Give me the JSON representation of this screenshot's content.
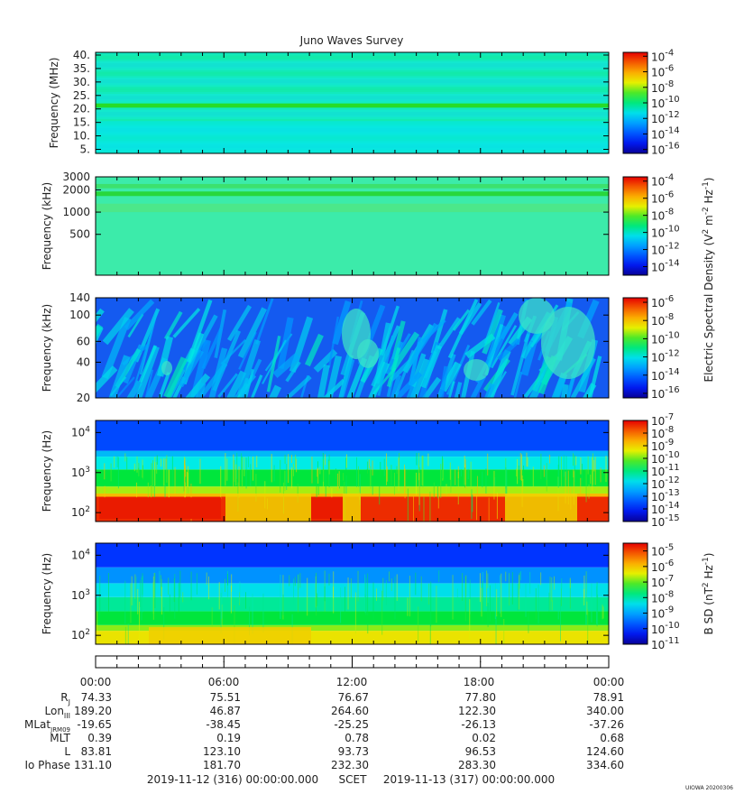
{
  "chart_data": {
    "type": "heatmap",
    "title": "Juno Waves Survey",
    "panels": [
      {
        "ylabel": "Frequency (MHz)",
        "y_scale": "linear",
        "ylim": [
          3.5,
          41
        ],
        "yticks": [
          {
            "v": 5,
            "t": "5."
          },
          {
            "v": 10,
            "t": "10."
          },
          {
            "v": 15,
            "t": "15."
          },
          {
            "v": 20,
            "t": "20."
          },
          {
            "v": 25,
            "t": "25."
          },
          {
            "v": 30,
            "t": "30."
          },
          {
            "v": 35,
            "t": "35."
          },
          {
            "v": 40,
            "t": "40."
          }
        ],
        "colorbar": {
          "min_exp": -16.5,
          "max_exp": -3.5,
          "ticks": [
            {
              "e": -4,
              "t": "-4"
            },
            {
              "e": -6,
              "t": "-6"
            },
            {
              "e": -8,
              "t": "-8"
            },
            {
              "e": -10,
              "t": "-10"
            },
            {
              "e": -12,
              "t": "-12"
            },
            {
              "e": -14,
              "t": "-14"
            },
            {
              "e": -16,
              "t": "-16"
            }
          ]
        },
        "pattern": "hfr_high"
      },
      {
        "ylabel": "Frequency (kHz)",
        "y_scale": "log",
        "ylim": [
          140,
          3000
        ],
        "yticks": [
          {
            "v": 500,
            "t": "500"
          },
          {
            "v": 1000,
            "t": "1000"
          },
          {
            "v": 2000,
            "t": "2000"
          },
          {
            "v": 3000,
            "t": "3000"
          }
        ],
        "colorbar": {
          "min_exp": -15,
          "max_exp": -3.5,
          "ticks": [
            {
              "e": -4,
              "t": "-4"
            },
            {
              "e": -6,
              "t": "-6"
            },
            {
              "e": -8,
              "t": "-8"
            },
            {
              "e": -10,
              "t": "-10"
            },
            {
              "e": -12,
              "t": "-12"
            },
            {
              "e": -14,
              "t": "-14"
            }
          ]
        },
        "pattern": "hfr_low"
      },
      {
        "ylabel": "Frequency (kHz)",
        "y_scale": "log",
        "ylim": [
          20,
          140
        ],
        "yticks": [
          {
            "v": 20,
            "t": "20"
          },
          {
            "v": 40,
            "t": "40"
          },
          {
            "v": 60,
            "t": "60"
          },
          {
            "v": 100,
            "t": "100"
          },
          {
            "v": 140,
            "t": "140"
          }
        ],
        "colorbar": {
          "min_exp": -16.5,
          "max_exp": -5.5,
          "ticks": [
            {
              "e": -6,
              "t": "-6"
            },
            {
              "e": -8,
              "t": "-8"
            },
            {
              "e": -10,
              "t": "-10"
            },
            {
              "e": -12,
              "t": "-12"
            },
            {
              "e": -14,
              "t": "-14"
            },
            {
              "e": -16,
              "t": "-16"
            }
          ]
        },
        "pattern": "lfr_streaks"
      },
      {
        "ylabel": "Frequency (Hz)",
        "y_scale": "log",
        "ylim": [
          60,
          20000
        ],
        "yticks": [
          {
            "v": 100,
            "t": "10",
            "sup": "2"
          },
          {
            "v": 1000,
            "t": "10",
            "sup": "3"
          },
          {
            "v": 10000,
            "t": "10",
            "sup": "4"
          }
        ],
        "colorbar": {
          "min_exp": -15,
          "max_exp": -7,
          "ticks": [
            {
              "e": -7,
              "t": "-7"
            },
            {
              "e": -8,
              "t": "-8"
            },
            {
              "e": -9,
              "t": "-9"
            },
            {
              "e": -10,
              "t": "-10"
            },
            {
              "e": -11,
              "t": "-11"
            },
            {
              "e": -12,
              "t": "-12"
            },
            {
              "e": -13,
              "t": "-13"
            },
            {
              "e": -14,
              "t": "-14"
            },
            {
              "e": -15,
              "t": "-15"
            }
          ]
        },
        "pattern": "lfr_e"
      },
      {
        "ylabel": "Frequency (Hz)",
        "y_scale": "log",
        "ylim": [
          60,
          20000
        ],
        "yticks": [
          {
            "v": 100,
            "t": "10",
            "sup": "2"
          },
          {
            "v": 1000,
            "t": "10",
            "sup": "3"
          },
          {
            "v": 10000,
            "t": "10",
            "sup": "4"
          }
        ],
        "colorbar": {
          "min_exp": -11,
          "max_exp": -4.5,
          "ticks": [
            {
              "e": -5,
              "t": "-5"
            },
            {
              "e": -6,
              "t": "-6"
            },
            {
              "e": -7,
              "t": "-7"
            },
            {
              "e": -8,
              "t": "-8"
            },
            {
              "e": -9,
              "t": "-9"
            },
            {
              "e": -10,
              "t": "-10"
            },
            {
              "e": -11,
              "t": "-11"
            }
          ]
        },
        "pattern": "lfr_b"
      }
    ],
    "colorbar_labels": {
      "electric": "Electric Spectral Density (V",
      "electric_sup1": "2",
      "electric_mid": " m",
      "electric_sup2": "-2",
      "electric_mid2": " Hz",
      "electric_sup3": "-1",
      "electric_end": ")",
      "magnetic": "B SD (nT",
      "magnetic_sup1": "2",
      "magnetic_mid": " Hz",
      "magnetic_sup2": "-1",
      "magnetic_end": ")"
    },
    "x_axis": {
      "ticks": [
        "00:00",
        "06:00",
        "12:00",
        "18:00",
        "00:00"
      ]
    },
    "ephemeris": [
      {
        "label": "R",
        "sub": "J",
        "values": [
          "74.33",
          "75.51",
          "76.67",
          "77.80",
          "78.91"
        ]
      },
      {
        "label": "Lon",
        "sub": "III",
        "values": [
          "189.20",
          "46.87",
          "264.60",
          "122.30",
          "340.00"
        ]
      },
      {
        "label": "MLat",
        "sub": "JRM09",
        "values": [
          "-19.65",
          "-38.45",
          "-25.25",
          "-26.13",
          "-37.26"
        ]
      },
      {
        "label": "MLT",
        "sub": "",
        "values": [
          "0.39",
          "0.19",
          "0.78",
          "0.02",
          "0.68"
        ]
      },
      {
        "label": "L",
        "sub": "",
        "values": [
          "83.81",
          "123.10",
          "93.73",
          "96.53",
          "124.60"
        ]
      },
      {
        "label": "Io Phase",
        "sub": "",
        "values": [
          "131.10",
          "181.70",
          "232.30",
          "283.30",
          "334.60"
        ]
      }
    ],
    "footer": {
      "start": "2019-11-12 (316) 00:00:00.000",
      "scet": "SCET",
      "end": "2019-11-13 (317) 00:00:00.000"
    },
    "stamp": "UIOWA 20200306"
  }
}
